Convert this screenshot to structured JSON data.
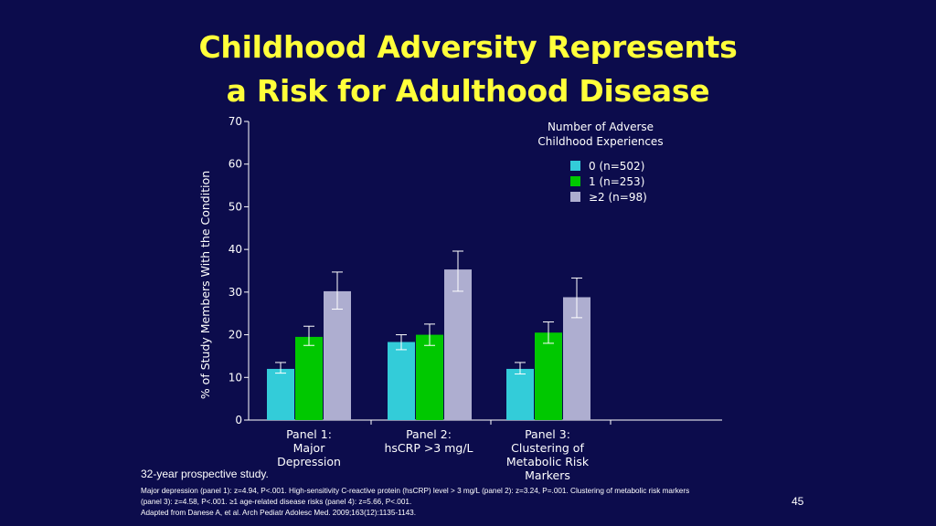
{
  "slide": {
    "title_line1": "Childhood Adversity Represents",
    "title_line2": "a Risk for Adulthood Disease",
    "note": "32-year prospective study.",
    "footnote_line1": "Major depression (panel 1): z=4.94, P<.001. High-sensitivity C-reactive protein (hsCRP) level > 3 mg/L (panel 2): z=3.24, P=.001. Clustering of metabolic risk markers",
    "footnote_line2": "(panel 3): z=4.58, P<.001. ≥1 age-related disease risks (panel 4): z=5.66, P<.001.",
    "footnote_line3": "Adapted from Danese A, et al. Arch Pediatr Adolesc Med. 2009;163(12):1135-1143.",
    "page_number": "45"
  },
  "chart_data": {
    "type": "bar",
    "title": "",
    "ylabel": "% of Study Members With the Condition",
    "xlabel": "",
    "ylim": [
      0,
      70
    ],
    "yticks": [
      0,
      10,
      20,
      30,
      40,
      50,
      60,
      70
    ],
    "legend_title": [
      "Number of Adverse",
      "Childhood Experiences"
    ],
    "legend_position": "top-right",
    "categories": [
      [
        "Panel 1:",
        "Major",
        "Depression"
      ],
      [
        "Panel 2:",
        "hsCRP >3 mg/L"
      ],
      [
        "Panel 3:",
        "Clustering of",
        "Metabolic Risk",
        "Markers"
      ]
    ],
    "series": [
      {
        "name": "0 (n=502)",
        "color": "#33ccd9",
        "values": [
          12,
          18.3,
          12
        ],
        "err_low": [
          11,
          16.5,
          10.8
        ],
        "err_high": [
          13.5,
          20,
          13.5
        ]
      },
      {
        "name": "1 (n=253)",
        "color": "#00c800",
        "values": [
          19.5,
          20,
          20.5
        ],
        "err_low": [
          17.5,
          17.5,
          18
        ],
        "err_high": [
          22,
          22.5,
          23
        ]
      },
      {
        "name": "≥2 (n=98)",
        "color": "#aeaed0",
        "values": [
          30.2,
          35.3,
          28.8
        ],
        "err_low": [
          26,
          30.2,
          24
        ],
        "err_high": [
          34.7,
          39.6,
          33.3
        ]
      }
    ]
  }
}
